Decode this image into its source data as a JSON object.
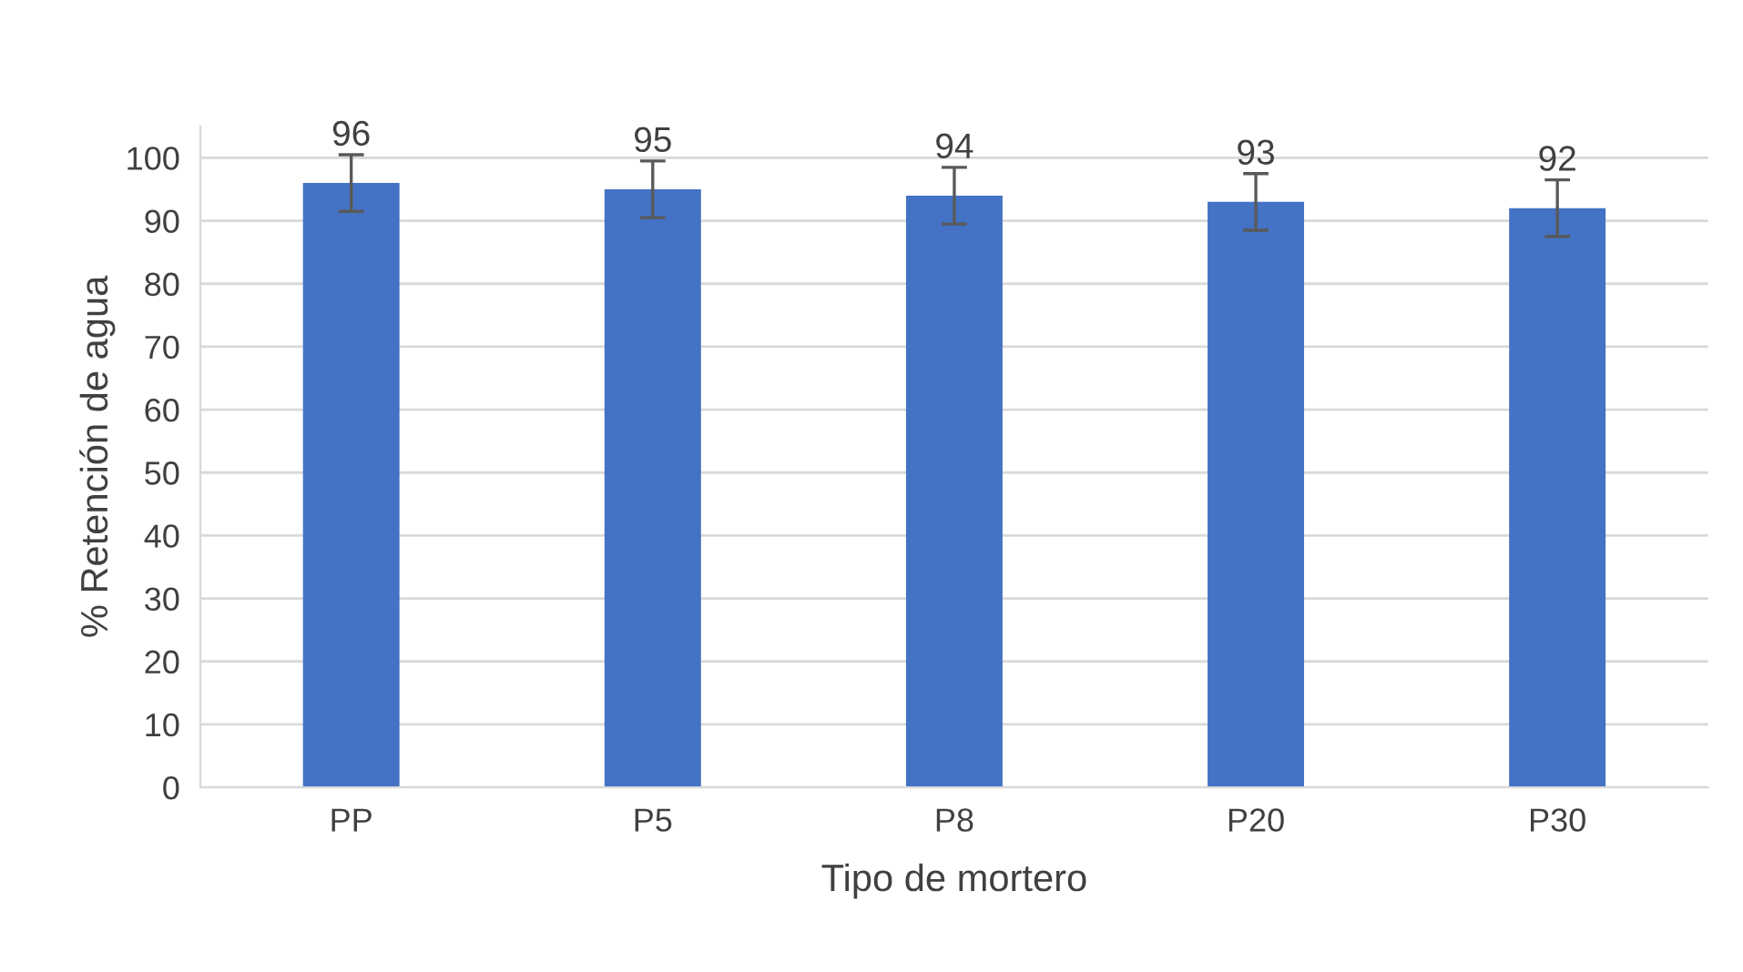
{
  "chart_data": {
    "type": "bar",
    "xlabel": "Tipo de mortero",
    "ylabel": "% Retención de agua",
    "categories": [
      "PP",
      "P5",
      "P8",
      "P20",
      "P30"
    ],
    "values": [
      96,
      95,
      94,
      93,
      92
    ],
    "errors": [
      4.5,
      4.5,
      4.5,
      4.5,
      4.5
    ],
    "color": "#4472c4",
    "ylim": [
      0,
      105
    ],
    "yticks": [
      0,
      10,
      20,
      30,
      40,
      50,
      60,
      70,
      80,
      90,
      100
    ],
    "grid": "y",
    "data_labels": true,
    "legend": false
  }
}
